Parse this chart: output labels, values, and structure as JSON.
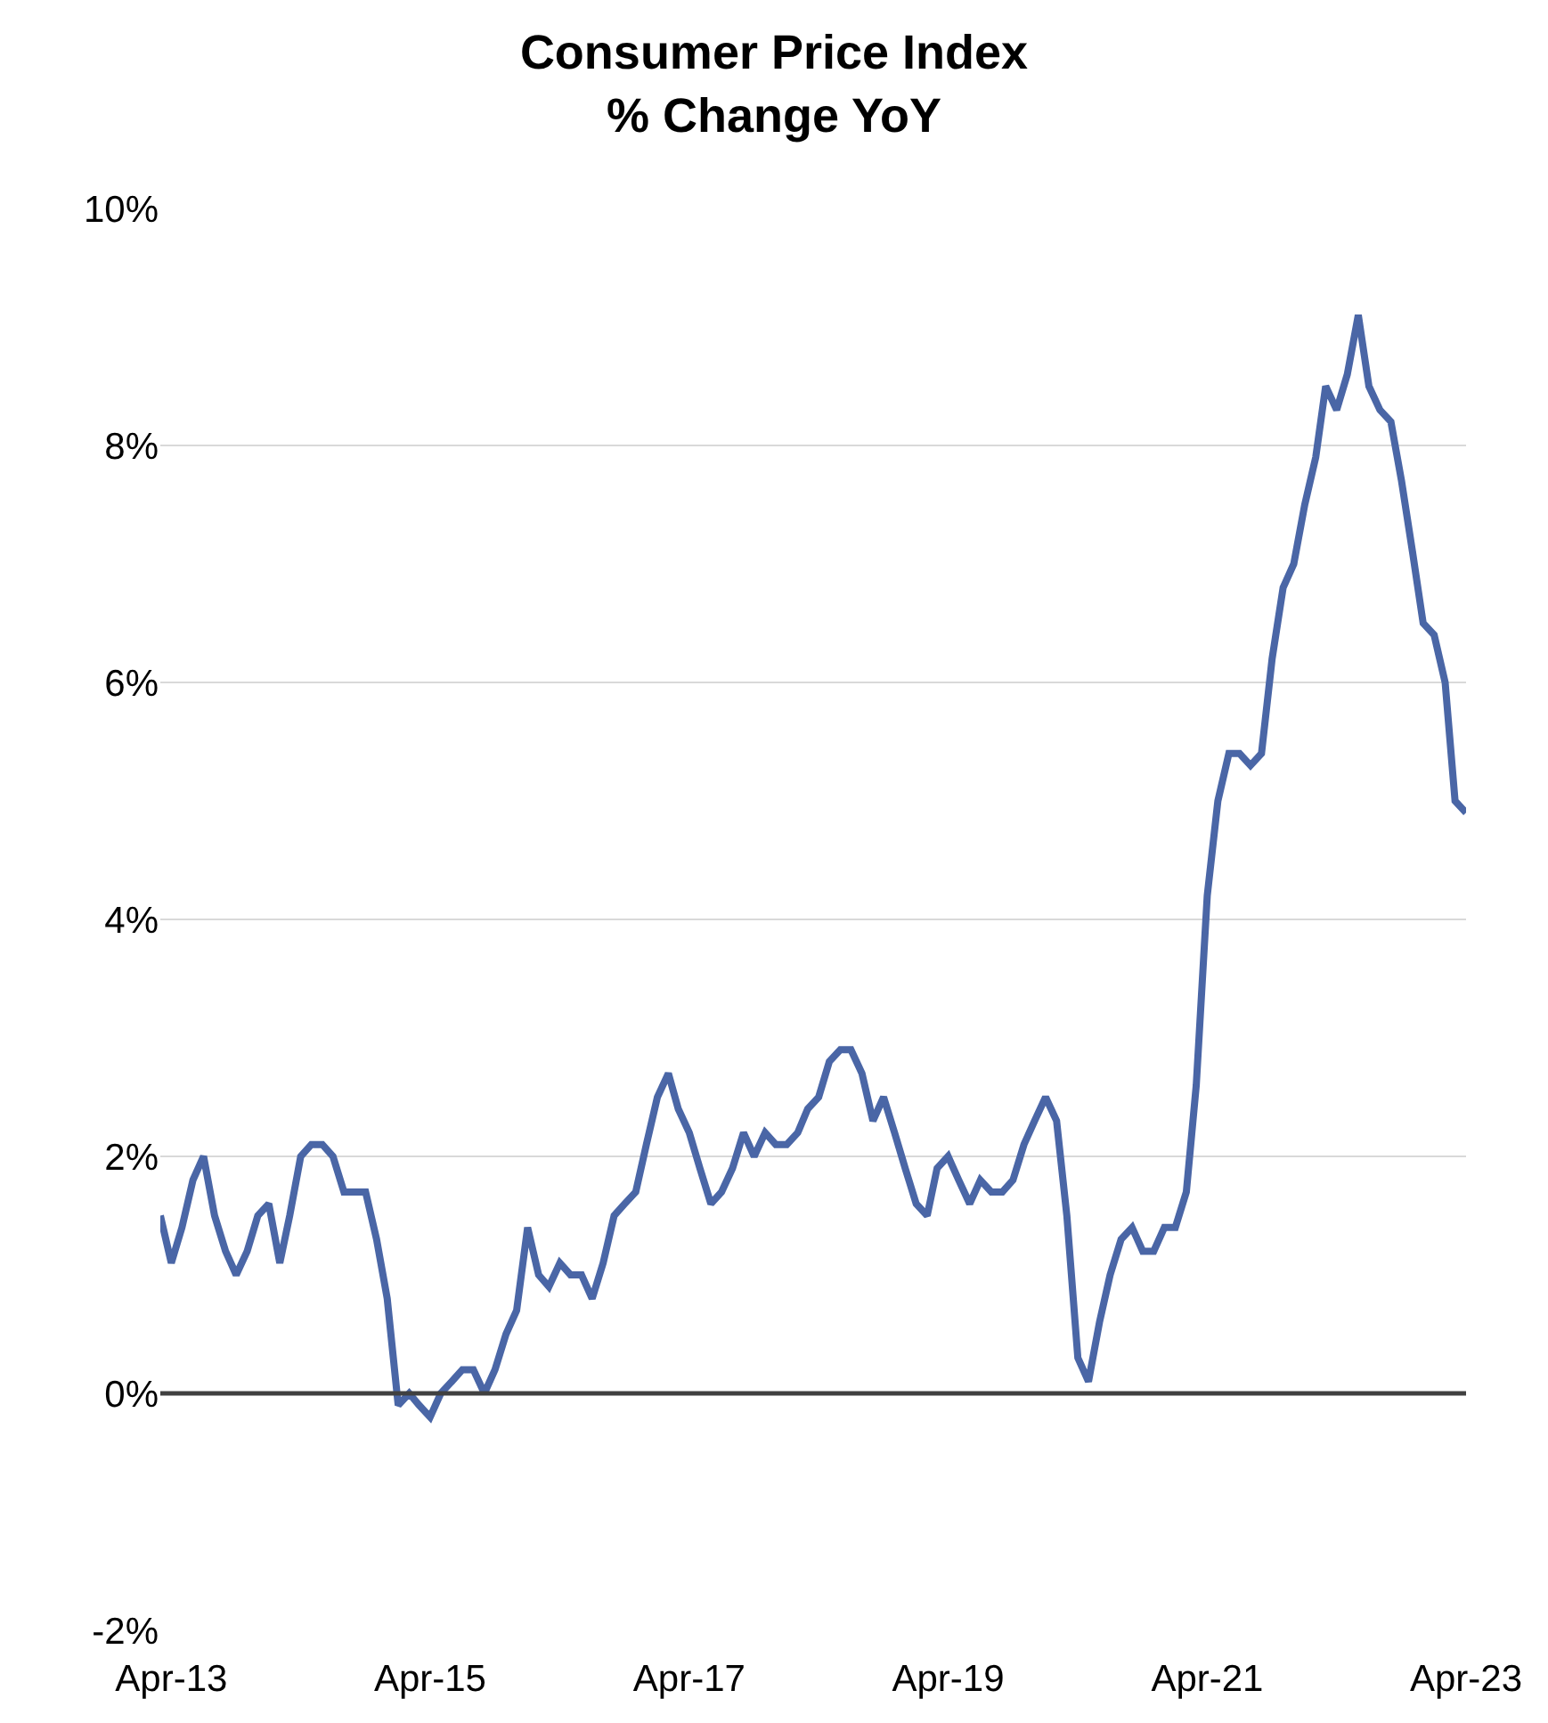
{
  "chart_data": {
    "type": "line",
    "title": "Consumer Price Index\n% Change YoY",
    "x": [
      "2013-03",
      "2013-04",
      "2013-05",
      "2013-06",
      "2013-07",
      "2013-08",
      "2013-09",
      "2013-10",
      "2013-11",
      "2013-12",
      "2014-01",
      "2014-02",
      "2014-03",
      "2014-04",
      "2014-05",
      "2014-06",
      "2014-07",
      "2014-08",
      "2014-09",
      "2014-10",
      "2014-11",
      "2014-12",
      "2015-01",
      "2015-02",
      "2015-03",
      "2015-04",
      "2015-05",
      "2015-06",
      "2015-07",
      "2015-08",
      "2015-09",
      "2015-10",
      "2015-11",
      "2015-12",
      "2016-01",
      "2016-02",
      "2016-03",
      "2016-04",
      "2016-05",
      "2016-06",
      "2016-07",
      "2016-08",
      "2016-09",
      "2016-10",
      "2016-11",
      "2016-12",
      "2017-01",
      "2017-02",
      "2017-03",
      "2017-04",
      "2017-05",
      "2017-06",
      "2017-07",
      "2017-08",
      "2017-09",
      "2017-10",
      "2017-11",
      "2017-12",
      "2018-01",
      "2018-02",
      "2018-03",
      "2018-04",
      "2018-05",
      "2018-06",
      "2018-07",
      "2018-08",
      "2018-09",
      "2018-10",
      "2018-11",
      "2018-12",
      "2019-01",
      "2019-02",
      "2019-03",
      "2019-04",
      "2019-05",
      "2019-06",
      "2019-07",
      "2019-08",
      "2019-09",
      "2019-10",
      "2019-11",
      "2019-12",
      "2020-01",
      "2020-02",
      "2020-03",
      "2020-04",
      "2020-05",
      "2020-06",
      "2020-07",
      "2020-08",
      "2020-09",
      "2020-10",
      "2020-11",
      "2020-12",
      "2021-01",
      "2021-02",
      "2021-03",
      "2021-04",
      "2021-05",
      "2021-06",
      "2021-07",
      "2021-08",
      "2021-09",
      "2021-10",
      "2021-11",
      "2021-12",
      "2022-01",
      "2022-02",
      "2022-03",
      "2022-04",
      "2022-05",
      "2022-06",
      "2022-07",
      "2022-08",
      "2022-09",
      "2022-10",
      "2022-11",
      "2022-12",
      "2023-01",
      "2023-02",
      "2023-03",
      "2023-04"
    ],
    "series": [
      {
        "color": "#4a66a6",
        "values": [
          1.5,
          1.1,
          1.4,
          1.8,
          2.0,
          1.5,
          1.2,
          1.0,
          1.2,
          1.5,
          1.6,
          1.1,
          1.5,
          2.0,
          2.1,
          2.1,
          2.0,
          1.7,
          1.7,
          1.7,
          1.3,
          0.8,
          -0.1,
          0.0,
          -0.1,
          -0.2,
          0.0,
          0.1,
          0.2,
          0.2,
          0.0,
          0.2,
          0.5,
          0.7,
          1.4,
          1.0,
          0.9,
          1.1,
          1.0,
          1.0,
          0.8,
          1.1,
          1.5,
          1.6,
          1.7,
          2.1,
          2.5,
          2.7,
          2.4,
          2.2,
          1.9,
          1.6,
          1.7,
          1.9,
          2.2,
          2.0,
          2.2,
          2.1,
          2.1,
          2.2,
          2.4,
          2.5,
          2.8,
          2.9,
          2.9,
          2.7,
          2.3,
          2.5,
          2.2,
          1.9,
          1.6,
          1.5,
          1.9,
          2.0,
          1.8,
          1.6,
          1.8,
          1.7,
          1.7,
          1.8,
          2.1,
          2.3,
          2.5,
          2.3,
          1.5,
          0.3,
          0.1,
          0.6,
          1.0,
          1.3,
          1.4,
          1.2,
          1.2,
          1.4,
          1.4,
          1.7,
          2.6,
          4.2,
          5.0,
          5.4,
          5.4,
          5.3,
          5.4,
          6.2,
          6.8,
          7.0,
          7.5,
          7.9,
          8.5,
          8.3,
          8.6,
          9.1,
          8.5,
          8.3,
          8.2,
          7.7,
          7.1,
          6.5,
          6.4,
          6.0,
          5.0,
          4.9
        ]
      }
    ],
    "xlim": [
      "2013-03",
      "2023-04"
    ],
    "xticks": [
      {
        "value": "2013-04",
        "label": "Apr-13"
      },
      {
        "value": "2015-04",
        "label": "Apr-15"
      },
      {
        "value": "2017-04",
        "label": "Apr-17"
      },
      {
        "value": "2019-04",
        "label": "Apr-19"
      },
      {
        "value": "2021-04",
        "label": "Apr-21"
      },
      {
        "value": "2023-04",
        "label": "Apr-23"
      }
    ],
    "ylim": [
      -2,
      10
    ],
    "yticks": [
      {
        "value": -2,
        "label": "-2%"
      },
      {
        "value": 0,
        "label": "0%"
      },
      {
        "value": 2,
        "label": "2%"
      },
      {
        "value": 4,
        "label": "4%"
      },
      {
        "value": 6,
        "label": "6%"
      },
      {
        "value": 8,
        "label": "8%"
      },
      {
        "value": 10,
        "label": "10%"
      }
    ],
    "ref_lines": [
      {
        "axis": "y",
        "value": 0,
        "color": "#404040"
      }
    ],
    "grid": "y",
    "marker": "none",
    "line_style": "solid"
  }
}
